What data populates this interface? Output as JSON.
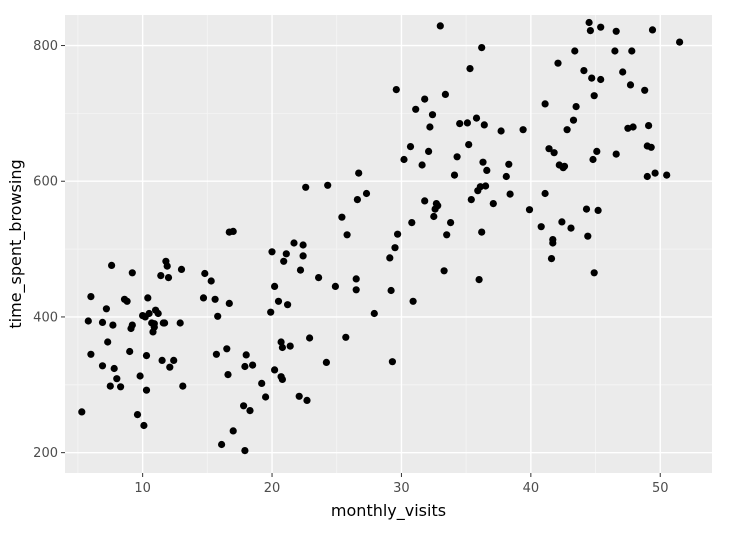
{
  "chart_data": {
    "type": "scatter",
    "title": "",
    "xlabel": "monthly_visits",
    "ylabel": "time_spent_browsing",
    "xlim": [
      4,
      54
    ],
    "ylim": [
      170,
      845
    ],
    "xticks": [
      10,
      20,
      30,
      40,
      50
    ],
    "yticks": [
      200,
      400,
      600,
      800
    ],
    "xtick_labels": [
      "10",
      "20",
      "30",
      "40",
      "50"
    ],
    "ytick_labels": [
      "200",
      "400",
      "600",
      "800"
    ],
    "grid": true,
    "legend": "none",
    "colors": {
      "panel_background": "#ebebeb",
      "major_grid": "#ffffff",
      "minor_grid": "#f5f5f5",
      "point": "#000000"
    },
    "points": [
      {
        "x": 5.3,
        "y": 260
      },
      {
        "x": 5.8,
        "y": 394
      },
      {
        "x": 6.0,
        "y": 430
      },
      {
        "x": 6.0,
        "y": 345
      },
      {
        "x": 6.9,
        "y": 392
      },
      {
        "x": 6.9,
        "y": 328
      },
      {
        "x": 7.2,
        "y": 412
      },
      {
        "x": 7.3,
        "y": 363
      },
      {
        "x": 7.5,
        "y": 298
      },
      {
        "x": 7.6,
        "y": 476
      },
      {
        "x": 7.7,
        "y": 388
      },
      {
        "x": 7.8,
        "y": 324
      },
      {
        "x": 8.0,
        "y": 309
      },
      {
        "x": 8.3,
        "y": 297
      },
      {
        "x": 8.6,
        "y": 426
      },
      {
        "x": 8.8,
        "y": 423
      },
      {
        "x": 9.0,
        "y": 349
      },
      {
        "x": 9.1,
        "y": 383
      },
      {
        "x": 9.2,
        "y": 465
      },
      {
        "x": 9.2,
        "y": 388
      },
      {
        "x": 9.6,
        "y": 256
      },
      {
        "x": 9.8,
        "y": 313
      },
      {
        "x": 10.0,
        "y": 402
      },
      {
        "x": 10.1,
        "y": 240
      },
      {
        "x": 10.2,
        "y": 400
      },
      {
        "x": 10.3,
        "y": 343
      },
      {
        "x": 10.3,
        "y": 292
      },
      {
        "x": 10.4,
        "y": 428
      },
      {
        "x": 10.5,
        "y": 405
      },
      {
        "x": 10.7,
        "y": 391
      },
      {
        "x": 10.8,
        "y": 378
      },
      {
        "x": 10.9,
        "y": 385
      },
      {
        "x": 10.9,
        "y": 390
      },
      {
        "x": 11.0,
        "y": 410
      },
      {
        "x": 11.2,
        "y": 405
      },
      {
        "x": 11.4,
        "y": 461
      },
      {
        "x": 11.5,
        "y": 336
      },
      {
        "x": 11.6,
        "y": 391
      },
      {
        "x": 11.7,
        "y": 391
      },
      {
        "x": 11.8,
        "y": 482
      },
      {
        "x": 11.9,
        "y": 475
      },
      {
        "x": 12.0,
        "y": 458
      },
      {
        "x": 12.1,
        "y": 326
      },
      {
        "x": 12.4,
        "y": 336
      },
      {
        "x": 12.9,
        "y": 391
      },
      {
        "x": 13.0,
        "y": 470
      },
      {
        "x": 13.1,
        "y": 298
      },
      {
        "x": 14.7,
        "y": 428
      },
      {
        "x": 14.8,
        "y": 464
      },
      {
        "x": 15.3,
        "y": 453
      },
      {
        "x": 15.6,
        "y": 426
      },
      {
        "x": 15.7,
        "y": 345
      },
      {
        "x": 15.8,
        "y": 401
      },
      {
        "x": 16.1,
        "y": 212
      },
      {
        "x": 16.5,
        "y": 353
      },
      {
        "x": 16.6,
        "y": 315
      },
      {
        "x": 16.7,
        "y": 420
      },
      {
        "x": 16.7,
        "y": 525
      },
      {
        "x": 17.0,
        "y": 526
      },
      {
        "x": 17.0,
        "y": 232
      },
      {
        "x": 17.8,
        "y": 269
      },
      {
        "x": 17.9,
        "y": 327
      },
      {
        "x": 17.9,
        "y": 203
      },
      {
        "x": 18.0,
        "y": 344
      },
      {
        "x": 18.3,
        "y": 262
      },
      {
        "x": 18.5,
        "y": 329
      },
      {
        "x": 19.2,
        "y": 302
      },
      {
        "x": 19.5,
        "y": 282
      },
      {
        "x": 19.9,
        "y": 407
      },
      {
        "x": 20.0,
        "y": 496
      },
      {
        "x": 20.2,
        "y": 445
      },
      {
        "x": 20.2,
        "y": 322
      },
      {
        "x": 20.5,
        "y": 423
      },
      {
        "x": 20.7,
        "y": 312
      },
      {
        "x": 20.7,
        "y": 363
      },
      {
        "x": 20.8,
        "y": 355
      },
      {
        "x": 20.8,
        "y": 308
      },
      {
        "x": 20.9,
        "y": 482
      },
      {
        "x": 21.1,
        "y": 493
      },
      {
        "x": 21.2,
        "y": 418
      },
      {
        "x": 21.4,
        "y": 357
      },
      {
        "x": 21.7,
        "y": 509
      },
      {
        "x": 22.1,
        "y": 283
      },
      {
        "x": 22.2,
        "y": 469
      },
      {
        "x": 22.4,
        "y": 490
      },
      {
        "x": 22.4,
        "y": 506
      },
      {
        "x": 22.6,
        "y": 591
      },
      {
        "x": 22.7,
        "y": 277
      },
      {
        "x": 22.9,
        "y": 369
      },
      {
        "x": 23.6,
        "y": 458
      },
      {
        "x": 24.2,
        "y": 333
      },
      {
        "x": 24.3,
        "y": 594
      },
      {
        "x": 24.9,
        "y": 445
      },
      {
        "x": 25.4,
        "y": 547
      },
      {
        "x": 25.7,
        "y": 370
      },
      {
        "x": 25.8,
        "y": 521
      },
      {
        "x": 26.5,
        "y": 440
      },
      {
        "x": 26.5,
        "y": 456
      },
      {
        "x": 26.6,
        "y": 573
      },
      {
        "x": 26.7,
        "y": 612
      },
      {
        "x": 27.3,
        "y": 582
      },
      {
        "x": 27.9,
        "y": 405
      },
      {
        "x": 29.1,
        "y": 487
      },
      {
        "x": 29.2,
        "y": 439
      },
      {
        "x": 29.3,
        "y": 334
      },
      {
        "x": 29.5,
        "y": 502
      },
      {
        "x": 29.6,
        "y": 735
      },
      {
        "x": 29.7,
        "y": 522
      },
      {
        "x": 30.2,
        "y": 632
      },
      {
        "x": 30.7,
        "y": 651
      },
      {
        "x": 30.8,
        "y": 539
      },
      {
        "x": 30.9,
        "y": 423
      },
      {
        "x": 31.1,
        "y": 706
      },
      {
        "x": 31.6,
        "y": 624
      },
      {
        "x": 31.8,
        "y": 571
      },
      {
        "x": 31.8,
        "y": 721
      },
      {
        "x": 32.1,
        "y": 644
      },
      {
        "x": 32.2,
        "y": 680
      },
      {
        "x": 32.4,
        "y": 698
      },
      {
        "x": 32.5,
        "y": 548
      },
      {
        "x": 32.6,
        "y": 559
      },
      {
        "x": 32.7,
        "y": 567
      },
      {
        "x": 32.8,
        "y": 564
      },
      {
        "x": 33.0,
        "y": 829
      },
      {
        "x": 33.3,
        "y": 468
      },
      {
        "x": 33.4,
        "y": 728
      },
      {
        "x": 33.5,
        "y": 521
      },
      {
        "x": 33.8,
        "y": 539
      },
      {
        "x": 34.1,
        "y": 609
      },
      {
        "x": 34.3,
        "y": 636
      },
      {
        "x": 34.5,
        "y": 685
      },
      {
        "x": 35.1,
        "y": 686
      },
      {
        "x": 35.2,
        "y": 654
      },
      {
        "x": 35.3,
        "y": 766
      },
      {
        "x": 35.4,
        "y": 573
      },
      {
        "x": 35.8,
        "y": 693
      },
      {
        "x": 35.9,
        "y": 586
      },
      {
        "x": 36.0,
        "y": 455
      },
      {
        "x": 36.1,
        "y": 592
      },
      {
        "x": 36.2,
        "y": 797
      },
      {
        "x": 36.2,
        "y": 525
      },
      {
        "x": 36.3,
        "y": 628
      },
      {
        "x": 36.4,
        "y": 683
      },
      {
        "x": 36.5,
        "y": 593
      },
      {
        "x": 36.6,
        "y": 616
      },
      {
        "x": 37.1,
        "y": 567
      },
      {
        "x": 37.7,
        "y": 674
      },
      {
        "x": 38.1,
        "y": 607
      },
      {
        "x": 38.3,
        "y": 625
      },
      {
        "x": 38.4,
        "y": 581
      },
      {
        "x": 39.4,
        "y": 676
      },
      {
        "x": 39.9,
        "y": 558
      },
      {
        "x": 40.8,
        "y": 533
      },
      {
        "x": 41.1,
        "y": 582
      },
      {
        "x": 41.1,
        "y": 714
      },
      {
        "x": 41.4,
        "y": 648
      },
      {
        "x": 41.6,
        "y": 486
      },
      {
        "x": 41.7,
        "y": 514
      },
      {
        "x": 41.7,
        "y": 509
      },
      {
        "x": 41.8,
        "y": 642
      },
      {
        "x": 42.1,
        "y": 774
      },
      {
        "x": 42.2,
        "y": 624
      },
      {
        "x": 42.4,
        "y": 540
      },
      {
        "x": 42.5,
        "y": 620
      },
      {
        "x": 42.6,
        "y": 622
      },
      {
        "x": 42.8,
        "y": 676
      },
      {
        "x": 43.1,
        "y": 531
      },
      {
        "x": 43.3,
        "y": 690
      },
      {
        "x": 43.4,
        "y": 792
      },
      {
        "x": 43.5,
        "y": 710
      },
      {
        "x": 44.1,
        "y": 763
      },
      {
        "x": 44.3,
        "y": 559
      },
      {
        "x": 44.4,
        "y": 519
      },
      {
        "x": 44.5,
        "y": 834
      },
      {
        "x": 44.6,
        "y": 822
      },
      {
        "x": 44.7,
        "y": 752
      },
      {
        "x": 44.8,
        "y": 632
      },
      {
        "x": 44.9,
        "y": 726
      },
      {
        "x": 44.9,
        "y": 465
      },
      {
        "x": 45.1,
        "y": 644
      },
      {
        "x": 45.2,
        "y": 557
      },
      {
        "x": 45.4,
        "y": 827
      },
      {
        "x": 45.4,
        "y": 750
      },
      {
        "x": 46.5,
        "y": 792
      },
      {
        "x": 46.6,
        "y": 640
      },
      {
        "x": 46.6,
        "y": 821
      },
      {
        "x": 47.1,
        "y": 761
      },
      {
        "x": 47.5,
        "y": 678
      },
      {
        "x": 47.7,
        "y": 742
      },
      {
        "x": 47.8,
        "y": 792
      },
      {
        "x": 47.9,
        "y": 680
      },
      {
        "x": 48.8,
        "y": 734
      },
      {
        "x": 49.0,
        "y": 652
      },
      {
        "x": 49.0,
        "y": 607
      },
      {
        "x": 49.1,
        "y": 682
      },
      {
        "x": 49.3,
        "y": 650
      },
      {
        "x": 49.4,
        "y": 823
      },
      {
        "x": 49.6,
        "y": 612
      },
      {
        "x": 50.5,
        "y": 609
      },
      {
        "x": 51.5,
        "y": 805
      }
    ]
  }
}
